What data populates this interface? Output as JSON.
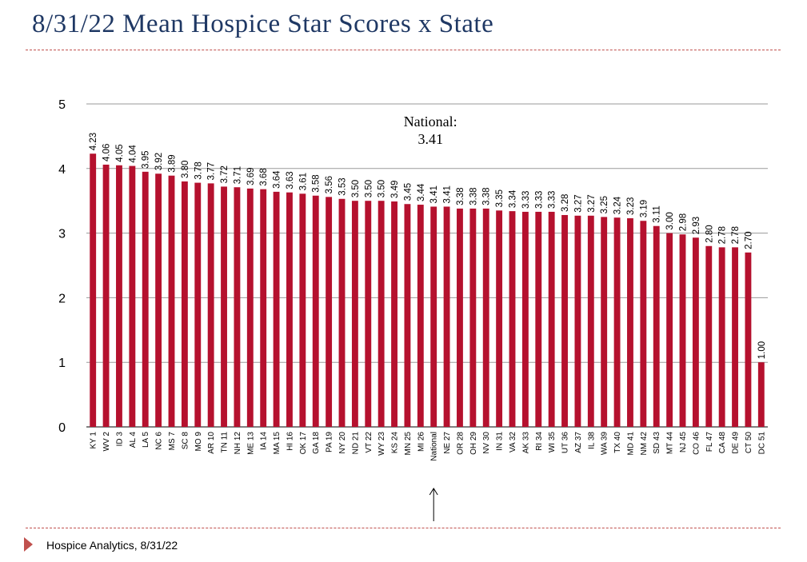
{
  "page": {
    "title": "8/31/22 Mean Hospice Star Scores x State",
    "footer": "Hospice Analytics, 8/31/22",
    "accent_color": "#c0504d",
    "title_color": "#1f3864"
  },
  "chart_data": {
    "type": "bar",
    "title": "",
    "xlabel": "",
    "ylabel": "",
    "ylim": [
      0,
      5
    ],
    "yticks": [
      0,
      1,
      2,
      3,
      4,
      5
    ],
    "grid": true,
    "bar_color": "#b5112e",
    "categories": [
      "KY 1",
      "WV 2",
      "ID 3",
      "AL 4",
      "LA 5",
      "NC 6",
      "MS 7",
      "SC 8",
      "MO 9",
      "AR 10",
      "TN 11",
      "NH 12",
      "ME 13",
      "IA 14",
      "MA 15",
      "HI 16",
      "OK 17",
      "GA 18",
      "PA 19",
      "NY 20",
      "ND 21",
      "VT 22",
      "WY 23",
      "KS 24",
      "MN 25",
      "MI 26",
      "National",
      "NE 27",
      "OR 28",
      "OH 29",
      "NV 30",
      "IN 31",
      "VA 32",
      "AK 33",
      "RI 34",
      "WI 35",
      "UT 36",
      "AZ 37",
      "IL 38",
      "WA 39",
      "TX 40",
      "MD 41",
      "NM 42",
      "SD 43",
      "MT 44",
      "NJ 45",
      "CO 46",
      "FL 47",
      "CA 48",
      "DE 49",
      "CT 50",
      "DC 51"
    ],
    "values": [
      4.23,
      4.06,
      4.05,
      4.04,
      3.95,
      3.92,
      3.89,
      3.8,
      3.78,
      3.77,
      3.72,
      3.71,
      3.69,
      3.68,
      3.64,
      3.63,
      3.61,
      3.58,
      3.56,
      3.53,
      3.5,
      3.5,
      3.5,
      3.49,
      3.45,
      3.44,
      3.41,
      3.41,
      3.38,
      3.38,
      3.38,
      3.35,
      3.34,
      3.33,
      3.33,
      3.33,
      3.28,
      3.27,
      3.27,
      3.25,
      3.24,
      3.23,
      3.19,
      3.11,
      3.0,
      2.98,
      2.93,
      2.8,
      2.78,
      2.78,
      2.7,
      1.0
    ],
    "value_labels": [
      "4.23",
      "4.06",
      "4.05",
      "4.04",
      "3.95",
      "3.92",
      "3.89",
      "3.80",
      "3.78",
      "3.77",
      "3.72",
      "3.71",
      "3.69",
      "3.68",
      "3.64",
      "3.63",
      "3.61",
      "3.58",
      "3.56",
      "3.53",
      "3.50",
      "3.50",
      "3.50",
      "3.49",
      "3.45",
      "3.44",
      "3.41",
      "3.41",
      "3.38",
      "3.38",
      "3.38",
      "3.35",
      "3.34",
      "3.33",
      "3.33",
      "3.33",
      "3.28",
      "3.27",
      "3.27",
      "3.25",
      "3.24",
      "3.23",
      "3.19",
      "3.11",
      "3.00",
      "2.98",
      "2.93",
      "2.80",
      "2.78",
      "2.78",
      "2.70",
      "1.00"
    ],
    "annotation": {
      "line1": "National:",
      "line2": "3.41",
      "points_to": "National"
    }
  }
}
